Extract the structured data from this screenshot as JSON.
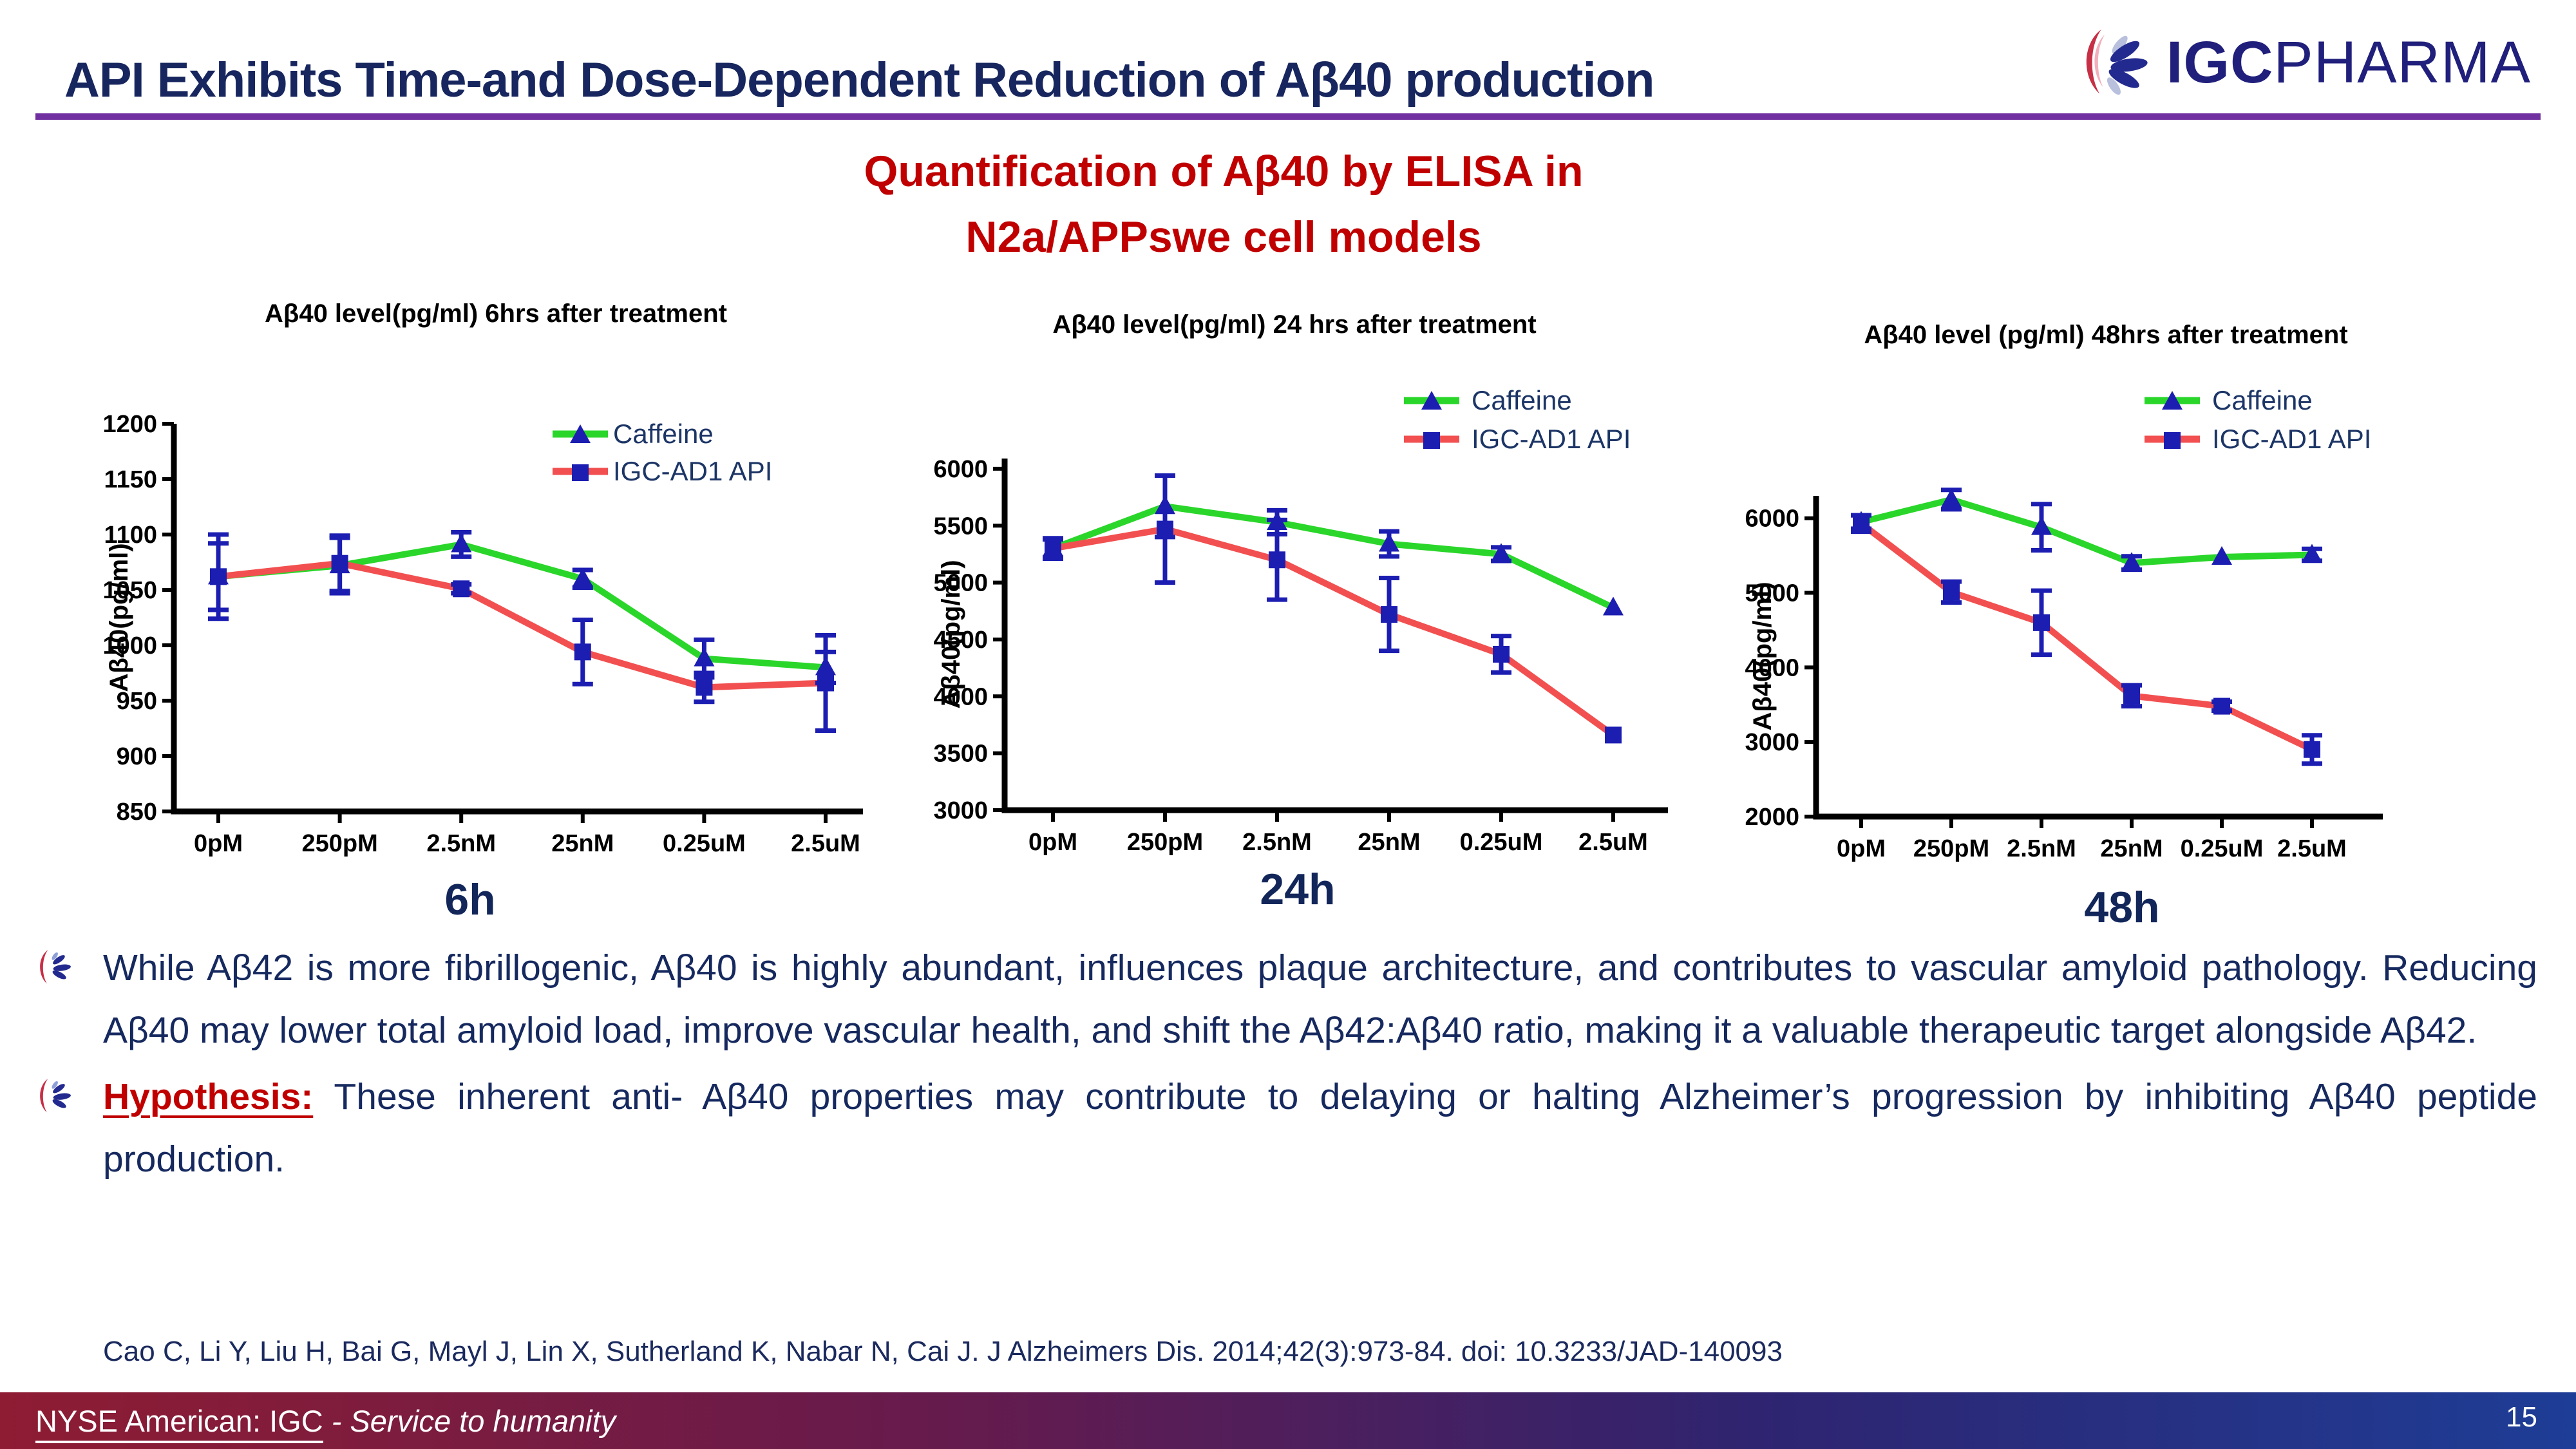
{
  "header": {
    "title": "API Exhibits Time-and Dose-Dependent Reduction of Aβ40 production",
    "logo_bold": "IGC",
    "logo_light": "PHARMA"
  },
  "subtitle": {
    "line1": "Quantification of Aβ40 by ELISA in",
    "line2": "N2a/APPswe cell models"
  },
  "chart_data": [
    {
      "type": "line",
      "title": "Aβ40 level(pg/ml) 6hrs after treatment",
      "time_label": "6h",
      "ylabel": "Aβ40(pg/ml)",
      "categories": [
        "0pM",
        "250pM",
        "2.5nM",
        "25nM",
        "0.25uM",
        "2.5uM"
      ],
      "ylim": [
        850,
        1200
      ],
      "yticks": [
        850,
        900,
        950,
        1000,
        1050,
        1100,
        1150,
        1200
      ],
      "grid": false,
      "legend_position": "upper-right",
      "legend": [
        "Caffeine",
        "IGC-AD1 API"
      ],
      "series": [
        {
          "name": "Caffeine",
          "color": "#2BD62B",
          "marker": "triangle",
          "values": [
            1062,
            1072,
            1091,
            1060,
            988,
            980
          ],
          "errors": [
            38,
            25,
            11,
            8,
            17,
            14
          ]
        },
        {
          "name": "IGC-AD1 API",
          "color": "#F25050",
          "marker": "square",
          "values": [
            1062,
            1074,
            1051,
            994,
            962,
            966
          ],
          "errors": [
            30,
            25,
            4,
            29,
            13,
            43
          ]
        }
      ]
    },
    {
      "type": "line",
      "title": "Aβ40 level(pg/ml)  24 hrs after treatment",
      "time_label": "24h",
      "ylabel": "Aβ40(pg/ml)",
      "categories": [
        "0pM",
        "250pM",
        "2.5nM",
        "25nM",
        "0.25uM",
        "2.5uM"
      ],
      "ylim": [
        3000,
        6090
      ],
      "yticks": [
        3000,
        3500,
        4000,
        4500,
        5000,
        5500,
        6000
      ],
      "grid": false,
      "legend_position": "upper-right",
      "legend": [
        "Caffeine",
        "IGC-AD1 API"
      ],
      "series": [
        {
          "name": "Caffeine",
          "color": "#2BD62B",
          "marker": "triangle",
          "values": [
            5300,
            5670,
            5530,
            5340,
            5250,
            4780
          ],
          "errors": [
            90,
            270,
            105,
            110,
            60,
            0
          ]
        },
        {
          "name": "IGC-AD1 API",
          "color": "#F25050",
          "marker": "square",
          "values": [
            5300,
            5470,
            5200,
            4720,
            4370,
            3660
          ],
          "errors": [
            80,
            470,
            350,
            320,
            160,
            0
          ]
        }
      ]
    },
    {
      "type": "line",
      "title": "Aβ40 level (pg/ml)  48hrs after treatment",
      "time_label": "48h",
      "ylabel": "Aβ40(pg/ml)",
      "categories": [
        "0pM",
        "250pM",
        "2.5nM",
        "25nM",
        "0.25uM",
        "2.5uM"
      ],
      "ylim": [
        2000,
        6300
      ],
      "yticks": [
        2000,
        3000,
        4000,
        5000,
        6000
      ],
      "grid": false,
      "legend_position": "upper-right",
      "legend": [
        "Caffeine",
        "IGC-AD1 API"
      ],
      "series": [
        {
          "name": "Caffeine",
          "color": "#2BD62B",
          "marker": "triangle",
          "values": [
            5950,
            6250,
            5880,
            5400,
            5480,
            5510
          ],
          "errors": [
            90,
            130,
            310,
            90,
            0,
            80
          ]
        },
        {
          "name": "IGC-AD1 API",
          "color": "#F25050",
          "marker": "square",
          "values": [
            5930,
            5010,
            4600,
            3620,
            3480,
            2900
          ],
          "errors": [
            110,
            140,
            430,
            140,
            60,
            190
          ]
        }
      ]
    }
  ],
  "bullets": [
    {
      "text": "While Aβ42 is more fibrillogenic, Aβ40 is highly abundant, influences plaque architecture, and contributes to vascular amyloid pathology. Reducing Aβ40 may lower total amyloid load, improve vascular health, and shift the Aβ42:Aβ40 ratio, making it a valuable therapeutic target alongside Aβ42."
    },
    {
      "prefix": "Hypothesis:",
      "text": " These inherent anti- Aβ40 properties may contribute to delaying or halting Alzheimer’s progression by inhibiting Aβ40 peptide production."
    }
  ],
  "citation": "Cao C, Li Y, Liu H, Bai G, Mayl J, Lin X, Sutherland K, Nabar N, Cai J. J Alzheimers Dis. 2014;42(3):973-84. doi: 10.3233/JAD-140093",
  "footer": {
    "ticker": "NYSE American: IGC",
    "tagline": " - Service to humanity",
    "page_number": "15"
  },
  "colors": {
    "navy": "#17265E",
    "legend_navy": "#1C3566",
    "accent_red": "#C00000",
    "accent_purple": "#7030A0",
    "series_green": "#2BD62B",
    "series_red": "#F25050",
    "marker_blue": "#1C1EB2",
    "footer_left": "#8E1C33",
    "footer_right": "#1E3D96"
  }
}
